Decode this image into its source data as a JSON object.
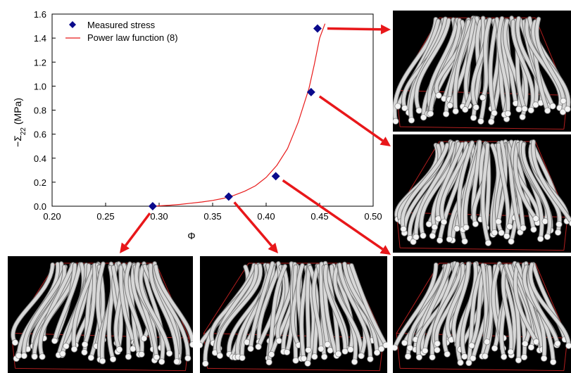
{
  "chart_data": {
    "type": "scatter",
    "xlabel": "Φ",
    "ylabel_prefix": "−Σ",
    "ylabel_subscript": "22",
    "ylabel_suffix": " (MPa)",
    "xlim": [
      0.2,
      0.5
    ],
    "ylim": [
      0.0,
      1.6
    ],
    "x_ticks": [
      "0.20",
      "0.25",
      "0.30",
      "0.35",
      "0.40",
      "0.45",
      "0.50"
    ],
    "y_ticks": [
      "0.0",
      "0.2",
      "0.4",
      "0.6",
      "0.8",
      "1.0",
      "1.2",
      "1.4",
      "1.6"
    ],
    "grid": false,
    "legend_position": "top-left",
    "series": [
      {
        "name": "Measured stress",
        "kind": "markers",
        "marker": "diamond",
        "color": "#0a0a8c",
        "x": [
          0.294,
          0.365,
          0.409,
          0.442,
          0.448
        ],
        "y": [
          0.0,
          0.08,
          0.25,
          0.95,
          1.48
        ]
      },
      {
        "name": "Power law function (8)",
        "kind": "line",
        "color": "#e81b1b",
        "x": [
          0.295,
          0.3,
          0.31,
          0.32,
          0.33,
          0.34,
          0.35,
          0.36,
          0.37,
          0.38,
          0.39,
          0.4,
          0.41,
          0.42,
          0.43,
          0.44,
          0.445,
          0.45,
          0.455
        ],
        "y": [
          0.0,
          0.003,
          0.008,
          0.015,
          0.025,
          0.035,
          0.048,
          0.065,
          0.09,
          0.125,
          0.17,
          0.24,
          0.34,
          0.48,
          0.7,
          0.98,
          1.18,
          1.4,
          1.52
        ]
      }
    ]
  },
  "colors": {
    "arrow": "#e8171a",
    "panel_background": "#000000",
    "fiber": "#d8d8d8",
    "bounding_box": "#b01e1e"
  }
}
